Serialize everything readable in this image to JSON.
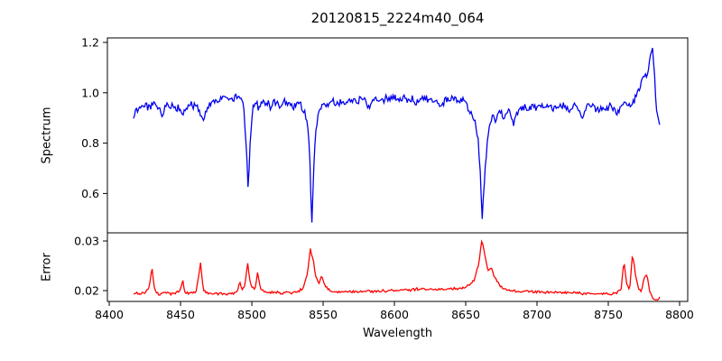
{
  "figure": {
    "background": "#ffffff"
  },
  "chart_data": {
    "type": "line",
    "title": "20120815_2224m40_064",
    "xlabel": "Wavelength",
    "grid": false,
    "legend": "none",
    "xlim": [
      8398.7,
      8805.7
    ],
    "xticks": {
      "values": [
        8400,
        8450,
        8500,
        8550,
        8600,
        8650,
        8700,
        8750,
        8800
      ],
      "labels": [
        "8400",
        "8450",
        "8500",
        "8550",
        "8600",
        "8650",
        "8700",
        "8750",
        "8800"
      ]
    },
    "axis_color": "#000000",
    "panels": [
      {
        "name": "spectrum",
        "ylabel": "Spectrum",
        "color": "#0000ee",
        "ylim": [
          0.4437,
          1.2179
        ],
        "yticks": {
          "values": [
            0.6,
            0.8,
            1.0,
            1.2
          ],
          "labels": [
            "0.6",
            "0.8",
            "1.0",
            "1.2"
          ]
        },
        "x_range": [
          8417,
          8786
        ],
        "n_points": 520,
        "noise_amp": 0.0125,
        "noise_amp2": 0.006,
        "seed": 3,
        "features_note": "CaII triplet absorption lines at 8498, 8542, 8662; emission-like peak 1.17 near 8781",
        "anchors": [
          [
            8417,
            0.9
          ],
          [
            8419,
            0.935
          ],
          [
            8423,
            0.95
          ],
          [
            8427,
            0.945
          ],
          [
            8431,
            0.955
          ],
          [
            8434,
            0.94
          ],
          [
            8437,
            0.91
          ],
          [
            8440,
            0.95
          ],
          [
            8444,
            0.948
          ],
          [
            8448,
            0.938
          ],
          [
            8452,
            0.915
          ],
          [
            8455,
            0.945
          ],
          [
            8459,
            0.952
          ],
          [
            8463,
            0.93
          ],
          [
            8466,
            0.9
          ],
          [
            8469,
            0.945
          ],
          [
            8473,
            0.962
          ],
          [
            8477,
            0.972
          ],
          [
            8481,
            0.99
          ],
          [
            8484,
            0.968
          ],
          [
            8488,
            0.98
          ],
          [
            8492,
            0.978
          ],
          [
            8494,
            0.965
          ],
          [
            8496,
            0.8
          ],
          [
            8497.5,
            0.615
          ],
          [
            8499,
            0.82
          ],
          [
            8501,
            0.95
          ],
          [
            8503,
            0.96
          ],
          [
            8505,
            0.935
          ],
          [
            8508,
            0.97
          ],
          [
            8511,
            0.958
          ],
          [
            8513,
            0.94
          ],
          [
            8516,
            0.97
          ],
          [
            8519,
            0.95
          ],
          [
            8522,
            0.962
          ],
          [
            8525,
            0.958
          ],
          [
            8528,
            0.94
          ],
          [
            8531,
            0.952
          ],
          [
            8534,
            0.958
          ],
          [
            8537,
            0.92
          ],
          [
            8539,
            0.87
          ],
          [
            8540.5,
            0.76
          ],
          [
            8542,
            0.475
          ],
          [
            8543.5,
            0.7
          ],
          [
            8545,
            0.87
          ],
          [
            8547,
            0.915
          ],
          [
            8550,
            0.948
          ],
          [
            8553,
            0.96
          ],
          [
            8556,
            0.97
          ],
          [
            8559,
            0.952
          ],
          [
            8562,
            0.968
          ],
          [
            8565,
            0.958
          ],
          [
            8568,
            0.972
          ],
          [
            8571,
            0.978
          ],
          [
            8574,
            0.962
          ],
          [
            8577,
            0.982
          ],
          [
            8580,
            0.968
          ],
          [
            8582,
            0.94
          ],
          [
            8585,
            0.972
          ],
          [
            8588,
            0.98
          ],
          [
            8591,
            0.968
          ],
          [
            8594,
            0.984
          ],
          [
            8597,
            0.972
          ],
          [
            8600,
            0.982
          ],
          [
            8603,
            0.97
          ],
          [
            8606,
            0.984
          ],
          [
            8609,
            0.97
          ],
          [
            8612,
            0.978
          ],
          [
            8615,
            0.96
          ],
          [
            8618,
            0.976
          ],
          [
            8621,
            0.984
          ],
          [
            8624,
            0.968
          ],
          [
            8627,
            0.96
          ],
          [
            8630,
            0.958
          ],
          [
            8633,
            0.942
          ],
          [
            8636,
            0.974
          ],
          [
            8639,
            0.97
          ],
          [
            8642,
            0.98
          ],
          [
            8645,
            0.972
          ],
          [
            8648,
            0.968
          ],
          [
            8651,
            0.948
          ],
          [
            8654,
            0.92
          ],
          [
            8657,
            0.88
          ],
          [
            8659,
            0.8
          ],
          [
            8660.5,
            0.64
          ],
          [
            8661.5,
            0.5
          ],
          [
            8663,
            0.64
          ],
          [
            8665,
            0.8
          ],
          [
            8667,
            0.88
          ],
          [
            8669,
            0.916
          ],
          [
            8671,
            0.89
          ],
          [
            8674,
            0.928
          ],
          [
            8677,
            0.9
          ],
          [
            8680,
            0.93
          ],
          [
            8684,
            0.875
          ],
          [
            8687,
            0.938
          ],
          [
            8690,
            0.948
          ],
          [
            8693,
            0.93
          ],
          [
            8696,
            0.952
          ],
          [
            8699,
            0.94
          ],
          [
            8702,
            0.952
          ],
          [
            8705,
            0.944
          ],
          [
            8708,
            0.954
          ],
          [
            8711,
            0.93
          ],
          [
            8714,
            0.948
          ],
          [
            8717,
            0.952
          ],
          [
            8720,
            0.944
          ],
          [
            8723,
            0.93
          ],
          [
            8726,
            0.948
          ],
          [
            8729,
            0.936
          ],
          [
            8732,
            0.904
          ],
          [
            8735,
            0.942
          ],
          [
            8738,
            0.95
          ],
          [
            8741,
            0.938
          ],
          [
            8744,
            0.926
          ],
          [
            8747,
            0.944
          ],
          [
            8750,
            0.94
          ],
          [
            8753,
            0.944
          ],
          [
            8756,
            0.914
          ],
          [
            8759,
            0.948
          ],
          [
            8762,
            0.958
          ],
          [
            8765,
            0.95
          ],
          [
            8768,
            0.968
          ],
          [
            8770,
            1.0
          ],
          [
            8772,
            1.02
          ],
          [
            8774,
            1.048
          ],
          [
            8776,
            1.078
          ],
          [
            8777,
            1.058
          ],
          [
            8779,
            1.12
          ],
          [
            8781,
            1.175
          ],
          [
            8782,
            1.1
          ],
          [
            8783,
            1.0
          ],
          [
            8784,
            0.93
          ],
          [
            8785.5,
            0.868
          ]
        ]
      },
      {
        "name": "error",
        "ylabel": "Error",
        "color": "#ff0000",
        "ylim": [
          0.01782,
          0.03164
        ],
        "yticks": {
          "values": [
            0.02,
            0.03
          ],
          "labels": [
            "0.02",
            "0.03"
          ]
        },
        "x_range": [
          8417,
          8786
        ],
        "n_points": 480,
        "noise_amp": 0.00022,
        "noise_amp2": 0.0001,
        "seed": 11,
        "features_note": "baseline ~0.0195 with peaks at 8430, 8464, 8497, 8504, 8541, 8661 (max 0.030), 8761, 8767",
        "anchors": [
          [
            8417,
            0.0195
          ],
          [
            8421,
            0.0193
          ],
          [
            8425,
            0.0196
          ],
          [
            8428,
            0.0206
          ],
          [
            8430,
            0.0245
          ],
          [
            8432,
            0.02
          ],
          [
            8435,
            0.0193
          ],
          [
            8439,
            0.0196
          ],
          [
            8443,
            0.0192
          ],
          [
            8447,
            0.0196
          ],
          [
            8450,
            0.02
          ],
          [
            8451.5,
            0.0222
          ],
          [
            8453,
            0.0197
          ],
          [
            8457,
            0.0193
          ],
          [
            8461,
            0.0199
          ],
          [
            8464,
            0.0255
          ],
          [
            8466,
            0.02
          ],
          [
            8470,
            0.0194
          ],
          [
            8474,
            0.0193
          ],
          [
            8478,
            0.0195
          ],
          [
            8482,
            0.0192
          ],
          [
            8486,
            0.0194
          ],
          [
            8490,
            0.02
          ],
          [
            8491.5,
            0.022
          ],
          [
            8493,
            0.0201
          ],
          [
            8495,
            0.021
          ],
          [
            8497,
            0.0256
          ],
          [
            8499,
            0.0212
          ],
          [
            8502,
            0.0201
          ],
          [
            8504,
            0.0235
          ],
          [
            8506,
            0.0206
          ],
          [
            8509,
            0.0198
          ],
          [
            8513,
            0.0195
          ],
          [
            8517,
            0.0197
          ],
          [
            8521,
            0.0194
          ],
          [
            8525,
            0.0197
          ],
          [
            8529,
            0.0195
          ],
          [
            8533,
            0.0199
          ],
          [
            8536,
            0.0206
          ],
          [
            8539,
            0.0235
          ],
          [
            8541,
            0.0283
          ],
          [
            8543,
            0.0262
          ],
          [
            8545,
            0.0226
          ],
          [
            8547,
            0.0215
          ],
          [
            8549,
            0.023
          ],
          [
            8551,
            0.0212
          ],
          [
            8554,
            0.0201
          ],
          [
            8558,
            0.0198
          ],
          [
            8562,
            0.0196
          ],
          [
            8566,
            0.0198
          ],
          [
            8570,
            0.0197
          ],
          [
            8574,
            0.0199
          ],
          [
            8578,
            0.0197
          ],
          [
            8582,
            0.0199
          ],
          [
            8586,
            0.0198
          ],
          [
            8590,
            0.02
          ],
          [
            8594,
            0.0199
          ],
          [
            8598,
            0.0201
          ],
          [
            8602,
            0.0201
          ],
          [
            8606,
            0.0202
          ],
          [
            8610,
            0.0201
          ],
          [
            8614,
            0.0202
          ],
          [
            8618,
            0.0203
          ],
          [
            8622,
            0.0202
          ],
          [
            8626,
            0.0203
          ],
          [
            8630,
            0.0202
          ],
          [
            8634,
            0.0203
          ],
          [
            8638,
            0.0203
          ],
          [
            8642,
            0.0204
          ],
          [
            8646,
            0.0205
          ],
          [
            8650,
            0.0208
          ],
          [
            8653,
            0.0212
          ],
          [
            8656,
            0.0222
          ],
          [
            8659,
            0.0252
          ],
          [
            8661.5,
            0.0305
          ],
          [
            8664,
            0.0262
          ],
          [
            8666,
            0.024
          ],
          [
            8668,
            0.0246
          ],
          [
            8670,
            0.023
          ],
          [
            8673,
            0.0213
          ],
          [
            8676,
            0.0206
          ],
          [
            8680,
            0.0202
          ],
          [
            8684,
            0.02
          ],
          [
            8688,
            0.0198
          ],
          [
            8692,
            0.0199
          ],
          [
            8696,
            0.0197
          ],
          [
            8700,
            0.0198
          ],
          [
            8704,
            0.0196
          ],
          [
            8708,
            0.0197
          ],
          [
            8712,
            0.0196
          ],
          [
            8716,
            0.0197
          ],
          [
            8720,
            0.0196
          ],
          [
            8724,
            0.0195
          ],
          [
            8728,
            0.0196
          ],
          [
            8732,
            0.0194
          ],
          [
            8736,
            0.0195
          ],
          [
            8740,
            0.0194
          ],
          [
            8744,
            0.0193
          ],
          [
            8748,
            0.0194
          ],
          [
            8752,
            0.0193
          ],
          [
            8756,
            0.0196
          ],
          [
            8759,
            0.0205
          ],
          [
            8761,
            0.0258
          ],
          [
            8763,
            0.0212
          ],
          [
            8765,
            0.0203
          ],
          [
            8767,
            0.0275
          ],
          [
            8769,
            0.0232
          ],
          [
            8771,
            0.0206
          ],
          [
            8773,
            0.0197
          ],
          [
            8775,
            0.0225
          ],
          [
            8777,
            0.0231
          ],
          [
            8779,
            0.0201
          ],
          [
            8781,
            0.0186
          ],
          [
            8783,
            0.018
          ],
          [
            8785,
            0.0182
          ],
          [
            8786,
            0.0186
          ]
        ]
      }
    ]
  }
}
